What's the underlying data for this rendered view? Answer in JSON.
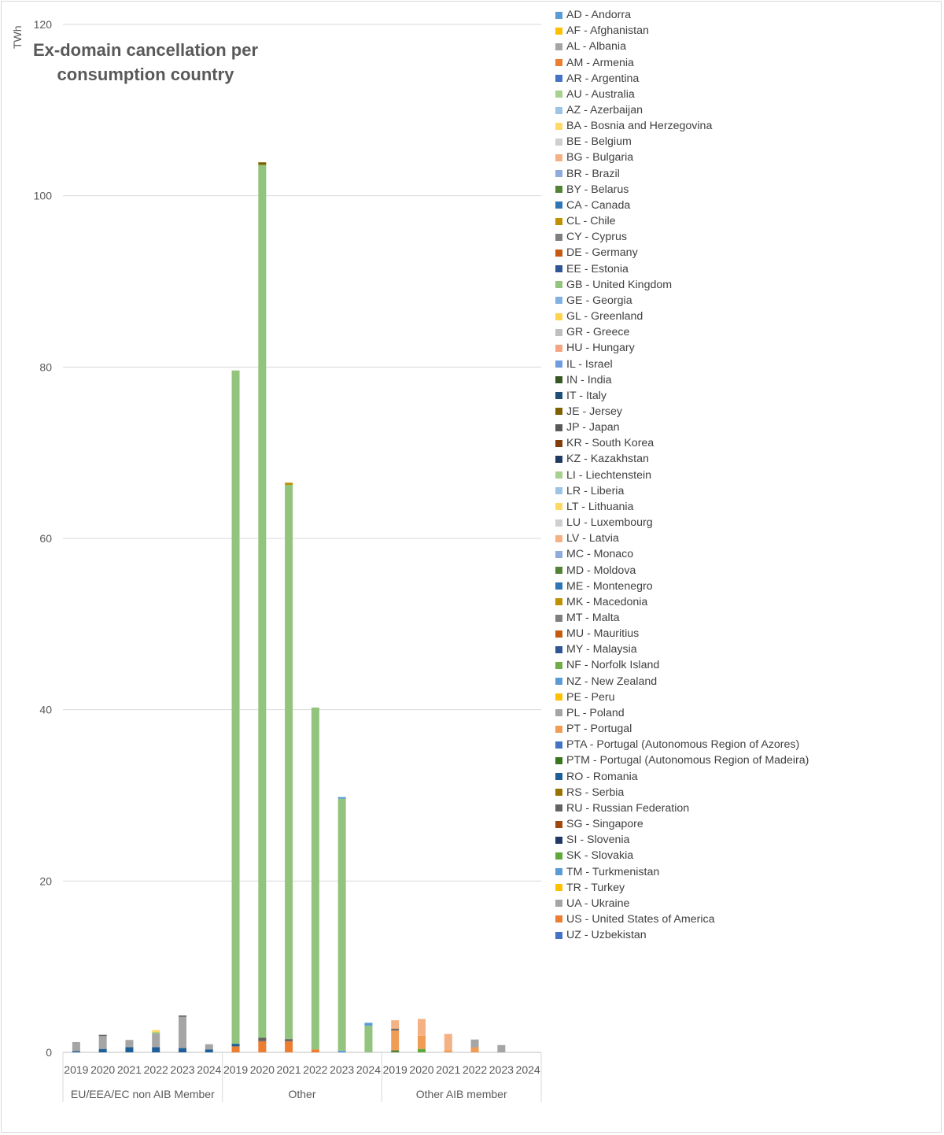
{
  "chart_data": {
    "type": "bar",
    "stacked": true,
    "title": "Ex-domain cancellation per consumption country",
    "ylabel": "TWh",
    "ylim": [
      0,
      120
    ],
    "yticks": [
      0,
      20,
      40,
      60,
      80,
      100,
      120
    ],
    "grid": true,
    "legend_position": "right",
    "groups": [
      {
        "name": "EU/EEA/EC non AIB Member",
        "categories": [
          "2019",
          "2020",
          "2021",
          "2022",
          "2023",
          "2024"
        ]
      },
      {
        "name": "Other",
        "categories": [
          "2019",
          "2020",
          "2021",
          "2022",
          "2023",
          "2024"
        ]
      },
      {
        "name": "Other AIB member",
        "categories": [
          "2019",
          "2020",
          "2021",
          "2022",
          "2023",
          "2024"
        ]
      }
    ],
    "series_legend": [
      {
        "code": "AD",
        "label": "AD - Andorra",
        "color": "#5b9bd5"
      },
      {
        "code": "AF",
        "label": "AF - Afghanistan",
        "color": "#ffc000"
      },
      {
        "code": "AL",
        "label": "AL - Albania",
        "color": "#a5a5a5"
      },
      {
        "code": "AM",
        "label": "AM - Armenia",
        "color": "#ed7d31"
      },
      {
        "code": "AR",
        "label": "AR - Argentina",
        "color": "#4472c4"
      },
      {
        "code": "AU",
        "label": "AU - Australia",
        "color": "#a9d18e"
      },
      {
        "code": "AZ",
        "label": "AZ - Azerbaijan",
        "color": "#9dc3e6"
      },
      {
        "code": "BA",
        "label": "BA - Bosnia and Herzegovina",
        "color": "#ffd966"
      },
      {
        "code": "BE",
        "label": "BE - Belgium",
        "color": "#d0cece"
      },
      {
        "code": "BG",
        "label": "BG - Bulgaria",
        "color": "#f4b183"
      },
      {
        "code": "BR",
        "label": "BR - Brazil",
        "color": "#8faadc"
      },
      {
        "code": "BY",
        "label": "BY - Belarus",
        "color": "#548235"
      },
      {
        "code": "CA",
        "label": "CA - Canada",
        "color": "#2e75b6"
      },
      {
        "code": "CL",
        "label": "CL - Chile",
        "color": "#bf9000"
      },
      {
        "code": "CY",
        "label": "CY - Cyprus",
        "color": "#7f7f7f"
      },
      {
        "code": "DE",
        "label": "DE - Germany",
        "color": "#c55a11"
      },
      {
        "code": "EE",
        "label": "EE - Estonia",
        "color": "#2f5597"
      },
      {
        "code": "GB",
        "label": "GB - United Kingdom",
        "color": "#93c47d"
      },
      {
        "code": "GE",
        "label": "GE - Georgia",
        "color": "#7fb1e3"
      },
      {
        "code": "GL",
        "label": "GL - Greenland",
        "color": "#ffd34d"
      },
      {
        "code": "GR",
        "label": "GR - Greece",
        "color": "#bfbfbf"
      },
      {
        "code": "HU",
        "label": "HU - Hungary",
        "color": "#f4a582"
      },
      {
        "code": "IL",
        "label": "IL - Israel",
        "color": "#6f9ee0"
      },
      {
        "code": "IN",
        "label": "IN - India",
        "color": "#375623"
      },
      {
        "code": "IT",
        "label": "IT - Italy",
        "color": "#1f4e79"
      },
      {
        "code": "JE",
        "label": "JE - Jersey",
        "color": "#7f6000"
      },
      {
        "code": "JP",
        "label": "JP - Japan",
        "color": "#595959"
      },
      {
        "code": "KR",
        "label": "KR - South Korea",
        "color": "#843c0c"
      },
      {
        "code": "KZ",
        "label": "KZ - Kazakhstan",
        "color": "#203864"
      },
      {
        "code": "LI",
        "label": "LI - Liechtenstein",
        "color": "#a9d18e"
      },
      {
        "code": "LR",
        "label": "LR - Liberia",
        "color": "#9dc3e6"
      },
      {
        "code": "LT",
        "label": "LT - Lithuania",
        "color": "#ffd966"
      },
      {
        "code": "LU",
        "label": "LU - Luxembourg",
        "color": "#d0cece"
      },
      {
        "code": "LV",
        "label": "LV - Latvia",
        "color": "#f4b183"
      },
      {
        "code": "MC",
        "label": "MC - Monaco",
        "color": "#8faadc"
      },
      {
        "code": "MD",
        "label": "MD - Moldova",
        "color": "#548235"
      },
      {
        "code": "ME",
        "label": "ME - Montenegro",
        "color": "#2e75b6"
      },
      {
        "code": "MK",
        "label": "MK - Macedonia",
        "color": "#bf9000"
      },
      {
        "code": "MT",
        "label": "MT - Malta",
        "color": "#7f7f7f"
      },
      {
        "code": "MU",
        "label": "MU - Mauritius",
        "color": "#c55a11"
      },
      {
        "code": "MY",
        "label": "MY - Malaysia",
        "color": "#2f5597"
      },
      {
        "code": "NF",
        "label": "NF - Norfolk Island",
        "color": "#70ad47"
      },
      {
        "code": "NZ",
        "label": "NZ - New Zealand",
        "color": "#5b9bd5"
      },
      {
        "code": "PE",
        "label": "PE - Peru",
        "color": "#ffc000"
      },
      {
        "code": "PL",
        "label": "PL - Poland",
        "color": "#a5a5a5"
      },
      {
        "code": "PT",
        "label": "PT - Portugal",
        "color": "#f19c55"
      },
      {
        "code": "PTA",
        "label": "PTA - Portugal (Autonomous Region of Azores)",
        "color": "#4472c4"
      },
      {
        "code": "PTM",
        "label": "PTM - Portugal (Autonomous Region of Madeira)",
        "color": "#38761d"
      },
      {
        "code": "RO",
        "label": "RO - Romania",
        "color": "#1f5f99"
      },
      {
        "code": "RS",
        "label": "RS - Serbia",
        "color": "#997300"
      },
      {
        "code": "RU",
        "label": "RU - Russian Federation",
        "color": "#636363"
      },
      {
        "code": "SG",
        "label": "SG - Singapore",
        "color": "#9e480e"
      },
      {
        "code": "SI",
        "label": "SI - Slovenia",
        "color": "#203864"
      },
      {
        "code": "SK",
        "label": "SK - Slovakia",
        "color": "#5fa83a"
      },
      {
        "code": "TM",
        "label": "TM - Turkmenistan",
        "color": "#5b9bd5"
      },
      {
        "code": "TR",
        "label": "TR - Turkey",
        "color": "#ffc000"
      },
      {
        "code": "UA",
        "label": "UA - Ukraine",
        "color": "#a5a5a5"
      },
      {
        "code": "US",
        "label": "US - United States of America",
        "color": "#ed7d31"
      },
      {
        "code": "UZ",
        "label": "UZ - Uzbekistan",
        "color": "#4472c4"
      }
    ],
    "stacks": [
      {
        "group": "EU/EEA/EC non AIB Member",
        "x": "2019",
        "segments": [
          {
            "code": "RO",
            "value": 0.15
          },
          {
            "code": "UA",
            "value": 1.05
          }
        ]
      },
      {
        "group": "EU/EEA/EC non AIB Member",
        "x": "2020",
        "segments": [
          {
            "code": "RO",
            "value": 0.4
          },
          {
            "code": "UA",
            "value": 1.5
          },
          {
            "code": "RU",
            "value": 0.15
          }
        ]
      },
      {
        "group": "EU/EEA/EC non AIB Member",
        "x": "2021",
        "segments": [
          {
            "code": "RO",
            "value": 0.6
          },
          {
            "code": "UA",
            "value": 0.85
          }
        ]
      },
      {
        "group": "EU/EEA/EC non AIB Member",
        "x": "2022",
        "segments": [
          {
            "code": "RO",
            "value": 0.6
          },
          {
            "code": "UA",
            "value": 1.55
          },
          {
            "code": "GB",
            "value": 0.2
          },
          {
            "code": "BA",
            "value": 0.25
          }
        ]
      },
      {
        "group": "EU/EEA/EC non AIB Member",
        "x": "2023",
        "segments": [
          {
            "code": "RO",
            "value": 0.5
          },
          {
            "code": "UA",
            "value": 3.65
          },
          {
            "code": "RU",
            "value": 0.15
          }
        ]
      },
      {
        "group": "EU/EEA/EC non AIB Member",
        "x": "2024",
        "segments": [
          {
            "code": "RO",
            "value": 0.35
          },
          {
            "code": "UA",
            "value": 0.6
          }
        ]
      },
      {
        "group": "Other",
        "x": "2019",
        "segments": [
          {
            "code": "US",
            "value": 0.7
          },
          {
            "code": "RO",
            "value": 0.3
          },
          {
            "code": "GB",
            "value": 78.6
          }
        ]
      },
      {
        "group": "Other",
        "x": "2020",
        "segments": [
          {
            "code": "US",
            "value": 1.3
          },
          {
            "code": "RU",
            "value": 0.4
          },
          {
            "code": "GB",
            "value": 101.9
          },
          {
            "code": "JE",
            "value": 0.3
          }
        ]
      },
      {
        "group": "Other",
        "x": "2021",
        "segments": [
          {
            "code": "US",
            "value": 1.3
          },
          {
            "code": "RU",
            "value": 0.25
          },
          {
            "code": "GB",
            "value": 64.7
          },
          {
            "code": "CL",
            "value": 0.25
          }
        ]
      },
      {
        "group": "Other",
        "x": "2022",
        "segments": [
          {
            "code": "US",
            "value": 0.35
          },
          {
            "code": "GB",
            "value": 39.9
          }
        ]
      },
      {
        "group": "Other",
        "x": "2023",
        "segments": [
          {
            "code": "AD",
            "value": 0.2
          },
          {
            "code": "GB",
            "value": 29.4
          },
          {
            "code": "AD",
            "value": 0.2
          }
        ]
      },
      {
        "group": "Other",
        "x": "2024",
        "segments": [
          {
            "code": "GB",
            "value": 3.1
          },
          {
            "code": "AD",
            "value": 0.35
          }
        ]
      },
      {
        "group": "Other AIB member",
        "x": "2019",
        "segments": [
          {
            "code": "BY",
            "value": 0.25
          },
          {
            "code": "PT",
            "value": 2.3
          },
          {
            "code": "RU",
            "value": 0.2
          },
          {
            "code": "BG",
            "value": 1.0
          }
        ]
      },
      {
        "group": "Other AIB member",
        "x": "2020",
        "segments": [
          {
            "code": "SK",
            "value": 0.4
          },
          {
            "code": "PT",
            "value": 1.55
          },
          {
            "code": "BG",
            "value": 1.95
          }
        ]
      },
      {
        "group": "Other AIB member",
        "x": "2021",
        "segments": [
          {
            "code": "PT",
            "value": 0.25
          },
          {
            "code": "BG",
            "value": 1.9
          }
        ]
      },
      {
        "group": "Other AIB member",
        "x": "2022",
        "segments": [
          {
            "code": "PT",
            "value": 0.6
          },
          {
            "code": "UA",
            "value": 0.9
          }
        ]
      },
      {
        "group": "Other AIB member",
        "x": "2023",
        "segments": [
          {
            "code": "UA",
            "value": 0.85
          }
        ]
      },
      {
        "group": "Other AIB member",
        "x": "2024",
        "segments": []
      }
    ]
  }
}
